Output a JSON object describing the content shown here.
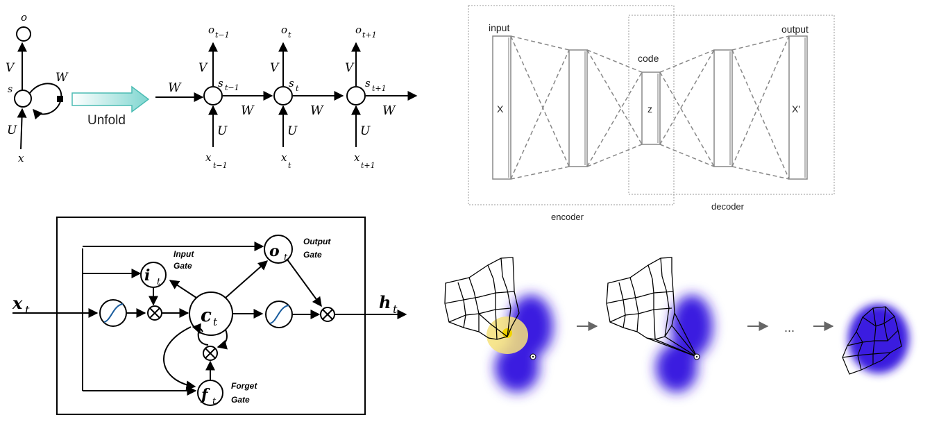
{
  "rnn": {
    "folded": {
      "out": "o",
      "in": "x",
      "state": "s",
      "w": "W",
      "v": "V",
      "u": "U"
    },
    "unfold_label": "Unfold",
    "w": "W",
    "v": "V",
    "u": "U",
    "s_prev": "s",
    "s_prev_sub": "t−1",
    "s_cur": "s",
    "s_cur_sub": "t",
    "s_next": "s",
    "s_next_sub": "t+1",
    "o_prev": "o",
    "o_prev_sub": "t−1",
    "o_cur": "o",
    "o_cur_sub": "t",
    "o_next": "o",
    "o_next_sub": "t+1",
    "x_prev": "x",
    "x_prev_sub": "t−1",
    "x_cur": "x",
    "x_cur_sub": "t",
    "x_next": "x",
    "x_next_sub": "t+1"
  },
  "autoencoder": {
    "input_label": "input",
    "output_label": "output",
    "code_label": "code",
    "x_label": "X",
    "z_label": "z",
    "xprime_label": "X'",
    "encoder_label": "encoder",
    "decoder_label": "decoder"
  },
  "lstm": {
    "x": "x",
    "x_sub": "t",
    "h": "h",
    "h_sub": "t",
    "i": "i",
    "i_sub": "t",
    "o": "o",
    "o_sub": "t",
    "c": "c",
    "c_sub": "t",
    "f": "f",
    "f_sub": "t",
    "input_gate_1": "Input",
    "input_gate_2": "Gate",
    "output_gate_1": "Output",
    "output_gate_2": "Gate",
    "forget_gate_1": "Forget",
    "forget_gate_2": "Gate"
  },
  "mesh": {
    "ellipsis": "..."
  }
}
